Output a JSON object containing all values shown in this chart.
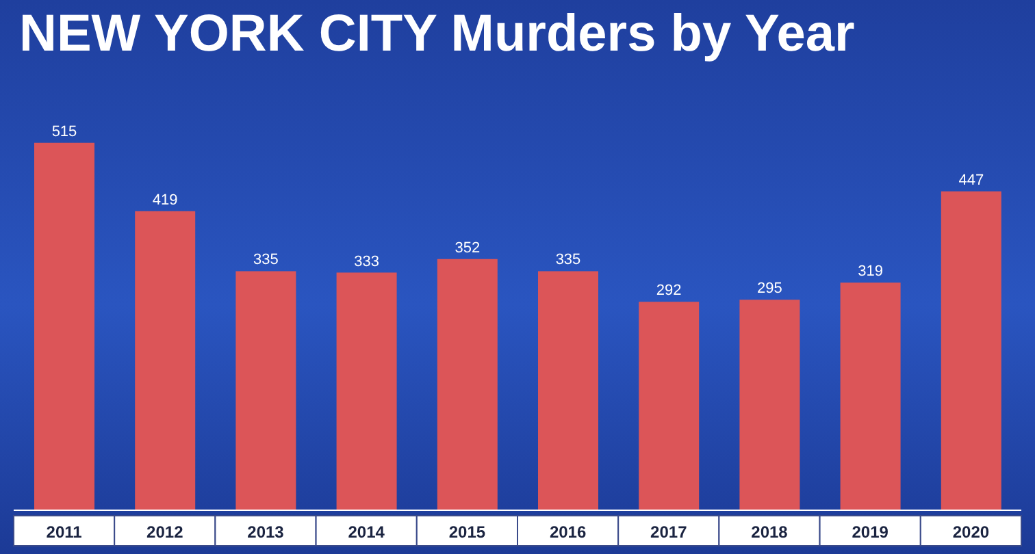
{
  "chart_data": {
    "type": "bar",
    "title": "NEW YORK CITY Murders by Year",
    "categories": [
      "2011",
      "2012",
      "2013",
      "2014",
      "2015",
      "2016",
      "2017",
      "2018",
      "2019",
      "2020"
    ],
    "values": [
      515,
      419,
      335,
      333,
      352,
      335,
      292,
      295,
      319,
      447
    ],
    "color": "#dc5558",
    "data_labels": true
  }
}
